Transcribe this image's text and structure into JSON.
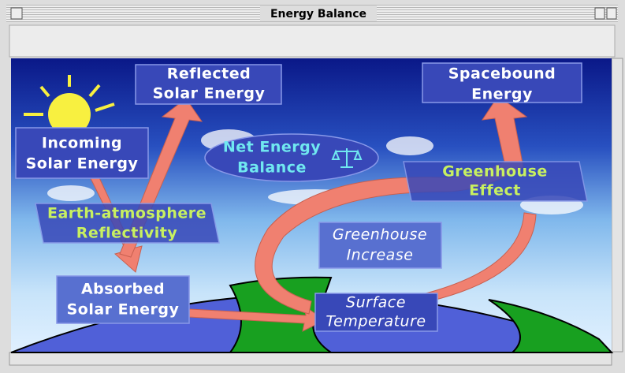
{
  "window": {
    "title": "Energy Balance"
  },
  "nodes": [
    {
      "lines": [
        "Reflected",
        "Solar Energy"
      ]
    },
    {
      "lines": [
        "Spacebound",
        "Energy"
      ]
    },
    {
      "lines": [
        "Incoming",
        "Solar Energy"
      ]
    },
    {
      "lines": [
        "Net Energy",
        "Balance"
      ]
    },
    {
      "lines": [
        "Greenhouse",
        "Effect"
      ]
    },
    {
      "lines": [
        "Earth-atmosphere",
        "Reflectivity"
      ]
    },
    {
      "lines": [
        "Greenhouse",
        "Increase"
      ]
    },
    {
      "lines": [
        "Absorbed",
        "Solar Energy"
      ]
    },
    {
      "lines": [
        "Surface",
        "Temperature"
      ]
    }
  ]
}
